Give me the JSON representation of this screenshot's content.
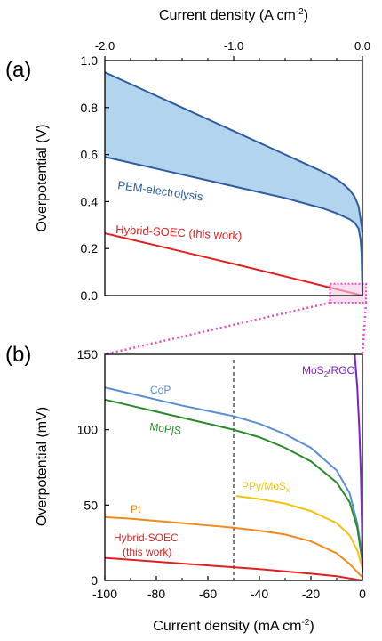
{
  "chart_data": [
    {
      "panel_label": "(a)",
      "type": "line",
      "xlabel_top": "Current density (A cm⁻²)",
      "xlabel_top_main": "Current density (A cm",
      "xlabel_top_sup": "-2",
      "xlabel_top_close": ")",
      "ylabel": "Overpotential (V)",
      "xlim": [
        -2.0,
        0.0
      ],
      "ylim": [
        0.0,
        1.0
      ],
      "x_ticks": [
        -2.0,
        -1.0,
        0.0
      ],
      "x_tick_labels": [
        "-2.0",
        "-1.0",
        "0.0"
      ],
      "y_ticks": [
        0.0,
        0.2,
        0.4,
        0.6,
        0.8,
        1.0
      ],
      "y_tick_labels": [
        "0.0",
        "0.2",
        "0.4",
        "0.6",
        "0.8",
        "1.0"
      ],
      "series": [
        {
          "name": "PEM-electrolysis",
          "color": "#2e5d9f",
          "fill": "#b3d4ee",
          "upper": [
            [
              -2.0,
              0.95
            ],
            [
              -1.8,
              0.9
            ],
            [
              -1.6,
              0.85
            ],
            [
              -1.4,
              0.8
            ],
            [
              -1.2,
              0.75
            ],
            [
              -1.0,
              0.7
            ],
            [
              -0.8,
              0.65
            ],
            [
              -0.6,
              0.6
            ],
            [
              -0.5,
              0.575
            ],
            [
              -0.4,
              0.55
            ],
            [
              -0.3,
              0.525
            ],
            [
              -0.2,
              0.495
            ],
            [
              -0.15,
              0.475
            ],
            [
              -0.1,
              0.45
            ],
            [
              -0.06,
              0.42
            ],
            [
              -0.03,
              0.38
            ],
            [
              -0.01,
              0.31
            ],
            [
              0.0,
              0.27
            ]
          ],
          "lower": [
            [
              -2.0,
              0.59
            ],
            [
              -1.8,
              0.565
            ],
            [
              -1.6,
              0.54
            ],
            [
              -1.4,
              0.515
            ],
            [
              -1.2,
              0.49
            ],
            [
              -1.0,
              0.465
            ],
            [
              -0.8,
              0.44
            ],
            [
              -0.6,
              0.415
            ],
            [
              -0.5,
              0.4
            ],
            [
              -0.4,
              0.385
            ],
            [
              -0.3,
              0.37
            ],
            [
              -0.2,
              0.35
            ],
            [
              -0.1,
              0.325
            ],
            [
              -0.06,
              0.31
            ],
            [
              -0.03,
              0.285
            ],
            [
              -0.015,
              0.24
            ],
            [
              -0.007,
              0.18
            ],
            [
              0.0,
              0.0
            ]
          ]
        },
        {
          "name": "Hybrid-SOEC (this work)",
          "color": "#e02020",
          "points": [
            [
              -2.0,
              0.265
            ],
            [
              -1.5,
              0.2
            ],
            [
              -1.0,
              0.135
            ],
            [
              -0.5,
              0.068
            ],
            [
              -0.2,
              0.027
            ],
            [
              0.0,
              0.0
            ]
          ]
        }
      ],
      "inset_box": {
        "xlim": [
          -0.1,
          0.0
        ],
        "ylim": [
          0.0,
          0.05
        ],
        "color": "#e64fc4"
      }
    },
    {
      "panel_label": "(b)",
      "type": "line",
      "xlabel": "Current density (mA cm⁻²)",
      "xlabel_main": "Current density (mA cm",
      "xlabel_sup": "-2",
      "xlabel_close": ")",
      "ylabel": "Overpotential (mV)",
      "xlim": [
        -100,
        0
      ],
      "ylim": [
        0,
        150
      ],
      "x_ticks": [
        -100,
        -80,
        -60,
        -40,
        -20,
        0
      ],
      "x_tick_labels": [
        "-100",
        "-80",
        "-60",
        "-40",
        "-20",
        "0"
      ],
      "y_ticks": [
        0,
        50,
        100,
        150
      ],
      "y_tick_labels": [
        "0",
        "50",
        "100",
        "150"
      ],
      "vline_x": -50,
      "series": [
        {
          "name": "CoP",
          "label_main": "CoP",
          "color": "#5b8dd6",
          "points": [
            [
              -100,
              128
            ],
            [
              -90,
              124
            ],
            [
              -80,
              120
            ],
            [
              -70,
              116
            ],
            [
              -60,
              112.5
            ],
            [
              -50,
              109
            ],
            [
              -40,
              104
            ],
            [
              -30,
              97
            ],
            [
              -20,
              88
            ],
            [
              -10,
              73
            ],
            [
              -5,
              58
            ],
            [
              -2,
              38
            ],
            [
              0,
              15
            ]
          ]
        },
        {
          "name": "MoP|S",
          "label_main": "MoP|S",
          "color": "#2b8a2b",
          "points": [
            [
              -100,
              120
            ],
            [
              -90,
              116
            ],
            [
              -80,
              112
            ],
            [
              -70,
              108
            ],
            [
              -60,
              104
            ],
            [
              -50,
              100
            ],
            [
              -40,
              95
            ],
            [
              -30,
              88
            ],
            [
              -20,
              79
            ],
            [
              -10,
              65
            ],
            [
              -5,
              52
            ],
            [
              -2,
              35
            ],
            [
              0,
              12
            ]
          ]
        },
        {
          "name": "PPy/MoSx",
          "label_main": "PPy/MoS",
          "label_sub": "x",
          "color": "#f2c30f",
          "points": [
            [
              -49,
              56
            ],
            [
              -40,
              54
            ],
            [
              -30,
              51
            ],
            [
              -20,
              46
            ],
            [
              -10,
              38
            ],
            [
              -5,
              30
            ],
            [
              -2,
              20
            ],
            [
              0,
              8
            ]
          ]
        },
        {
          "name": "Pt",
          "label_main": "Pt",
          "color": "#f08a1c",
          "points": [
            [
              -100,
              42
            ],
            [
              -90,
              41
            ],
            [
              -80,
              39.5
            ],
            [
              -70,
              38
            ],
            [
              -60,
              36.5
            ],
            [
              -50,
              35
            ],
            [
              -40,
              33
            ],
            [
              -30,
              30.5
            ],
            [
              -20,
              26
            ],
            [
              -10,
              18
            ],
            [
              -5,
              11
            ],
            [
              0,
              2
            ]
          ]
        },
        {
          "name": "Hybrid-SOEC (this work)",
          "label_main": "Hybrid-SOEC",
          "label_line2": "(this work)",
          "color": "#e02020",
          "points": [
            [
              -100,
              15
            ],
            [
              -80,
              12.5
            ],
            [
              -60,
              10
            ],
            [
              -40,
              7.5
            ],
            [
              -20,
              4.5
            ],
            [
              -10,
              2.8
            ],
            [
              0,
              0
            ]
          ]
        },
        {
          "name": "MoS2/RGO",
          "label_main": "MoS",
          "label_sub": "2",
          "label_tail": "/RGO",
          "color": "#7b22c9",
          "points": [
            [
              -3,
              150
            ],
            [
              -2,
              128
            ],
            [
              -1.2,
              100
            ],
            [
              -0.6,
              70
            ],
            [
              -0.2,
              35
            ],
            [
              0,
              5
            ]
          ]
        }
      ]
    }
  ]
}
